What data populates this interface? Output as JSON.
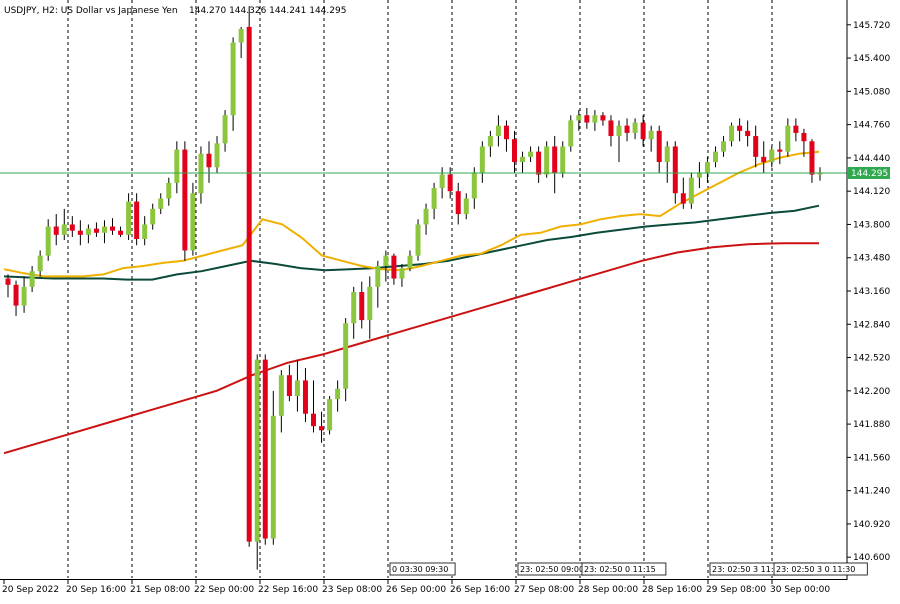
{
  "header": {
    "symbol_line": "USDJPY, H2:  US Dollar vs Japanese Yen",
    "ohlc": "144.270 144.326 144.241 144.295"
  },
  "current_price": "144.295",
  "colors": {
    "bull": "#8cc63f",
    "bear": "#e3001b",
    "ma_fast": "#f0b000",
    "ma_mid": "#0b4a3a",
    "ma_slow": "#cc1111",
    "price_line": "#2fa84f",
    "grid": "#000000"
  },
  "chart_data": {
    "type": "candlestick",
    "title": "",
    "ylim": [
      140.4,
      145.92
    ],
    "y_ticks": [
      "145.720",
      "145.400",
      "145.080",
      "144.760",
      "144.440",
      "144.120",
      "143.800",
      "143.480",
      "143.160",
      "142.840",
      "142.520",
      "142.200",
      "141.880",
      "141.560",
      "141.240",
      "140.920",
      "140.600"
    ],
    "x_labels": [
      "20 Sep 2022",
      "20 Sep 16:00",
      "21 Sep 08:00",
      "22 Sep 00:00",
      "22 Sep 16:00",
      "23 Sep 08:00",
      "26 Sep 00:00",
      "26 Sep 16:00",
      "27 Sep 08:00",
      "28 Sep 00:00",
      "28 Sep 16:00",
      "29 Sep 08:00",
      "30 Sep 00:00"
    ],
    "session_labels": [
      {
        "text": "0 03:30 09:30",
        "near": "26 Sep 00:00"
      },
      {
        "text": "23: 02:50 09:00",
        "near": "27 Sep 08:00"
      },
      {
        "text": "23: 02:50 0 11:15",
        "near": "28 Sep 00:00"
      },
      {
        "text": "23: 02:50 3 11: 14:30",
        "near": "29 Sep 08:00"
      },
      {
        "text": "23: 02:50 3 0 11:30",
        "near": "30 Sep 00:00"
      }
    ],
    "candles": [
      [
        143.28,
        143.32,
        143.1,
        143.22
      ],
      [
        143.22,
        143.26,
        142.92,
        143.02
      ],
      [
        143.02,
        143.3,
        142.95,
        143.2
      ],
      [
        143.2,
        143.4,
        143.15,
        143.35
      ],
      [
        143.35,
        143.55,
        143.3,
        143.5
      ],
      [
        143.5,
        143.85,
        143.45,
        143.78
      ],
      [
        143.78,
        143.9,
        143.6,
        143.7
      ],
      [
        143.7,
        143.95,
        143.65,
        143.8
      ],
      [
        143.8,
        143.88,
        143.68,
        143.74
      ],
      [
        143.74,
        143.84,
        143.6,
        143.7
      ],
      [
        143.7,
        143.8,
        143.62,
        143.76
      ],
      [
        143.76,
        143.82,
        143.68,
        143.72
      ],
      [
        143.72,
        143.84,
        143.62,
        143.78
      ],
      [
        143.78,
        143.86,
        143.7,
        143.74
      ],
      [
        143.74,
        143.78,
        143.68,
        143.7
      ],
      [
        143.7,
        144.1,
        143.65,
        144.02
      ],
      [
        144.02,
        144.1,
        143.6,
        143.66
      ],
      [
        143.66,
        143.88,
        143.6,
        143.8
      ],
      [
        143.8,
        144.0,
        143.75,
        143.95
      ],
      [
        143.95,
        144.1,
        143.9,
        144.05
      ],
      [
        144.05,
        144.25,
        143.98,
        144.2
      ],
      [
        144.2,
        144.6,
        144.1,
        144.52
      ],
      [
        144.52,
        144.6,
        143.45,
        143.55
      ],
      [
        143.55,
        144.2,
        143.5,
        144.1
      ],
      [
        144.1,
        144.55,
        144.0,
        144.48
      ],
      [
        144.48,
        144.6,
        144.2,
        144.35
      ],
      [
        144.35,
        144.65,
        144.3,
        144.58
      ],
      [
        144.58,
        144.9,
        144.5,
        144.85
      ],
      [
        144.85,
        145.6,
        144.7,
        145.55
      ],
      [
        145.55,
        145.7,
        145.4,
        145.68
      ],
      [
        145.7,
        145.9,
        140.7,
        140.75
      ],
      [
        140.75,
        142.55,
        140.48,
        142.5
      ],
      [
        142.5,
        142.55,
        140.72,
        140.78
      ],
      [
        140.78,
        142.2,
        140.72,
        141.96
      ],
      [
        141.96,
        142.4,
        141.8,
        142.35
      ],
      [
        142.35,
        142.45,
        142.1,
        142.15
      ],
      [
        142.15,
        142.5,
        142.0,
        142.3
      ],
      [
        142.3,
        142.42,
        141.9,
        141.98
      ],
      [
        141.98,
        142.3,
        141.8,
        141.86
      ],
      [
        141.86,
        142.0,
        141.7,
        141.82
      ],
      [
        141.82,
        142.15,
        141.78,
        142.12
      ],
      [
        142.12,
        142.3,
        142.0,
        142.22
      ],
      [
        142.22,
        142.9,
        142.1,
        142.85
      ],
      [
        142.85,
        143.2,
        142.7,
        143.15
      ],
      [
        143.15,
        143.25,
        142.8,
        142.88
      ],
      [
        142.88,
        143.3,
        142.7,
        143.2
      ],
      [
        143.2,
        143.45,
        143.0,
        143.4
      ],
      [
        143.4,
        143.55,
        143.25,
        143.5
      ],
      [
        143.5,
        143.52,
        143.22,
        143.28
      ],
      [
        143.28,
        143.42,
        143.2,
        143.38
      ],
      [
        143.38,
        143.55,
        143.35,
        143.5
      ],
      [
        143.5,
        143.85,
        143.45,
        143.8
      ],
      [
        143.8,
        144.0,
        143.7,
        143.95
      ],
      [
        143.95,
        144.2,
        143.85,
        144.15
      ],
      [
        144.15,
        144.35,
        144.05,
        144.28
      ],
      [
        144.28,
        144.35,
        144.05,
        144.12
      ],
      [
        144.12,
        144.2,
        143.8,
        143.9
      ],
      [
        143.9,
        144.1,
        143.85,
        144.05
      ],
      [
        144.05,
        144.35,
        143.95,
        144.3
      ],
      [
        144.3,
        144.6,
        144.2,
        144.55
      ],
      [
        144.55,
        144.7,
        144.45,
        144.65
      ],
      [
        144.65,
        144.85,
        144.55,
        144.75
      ],
      [
        144.75,
        144.8,
        144.5,
        144.62
      ],
      [
        144.62,
        144.7,
        144.3,
        144.4
      ],
      [
        144.4,
        144.5,
        144.3,
        144.45
      ],
      [
        144.45,
        144.55,
        144.4,
        144.5
      ],
      [
        144.5,
        144.55,
        144.2,
        144.28
      ],
      [
        144.28,
        144.6,
        144.25,
        144.55
      ],
      [
        144.55,
        144.65,
        144.1,
        144.3
      ],
      [
        144.3,
        144.6,
        144.25,
        144.55
      ],
      [
        144.55,
        144.85,
        144.5,
        144.8
      ],
      [
        144.8,
        144.9,
        144.7,
        144.85
      ],
      [
        144.85,
        144.92,
        144.72,
        144.78
      ],
      [
        144.78,
        144.9,
        144.7,
        144.85
      ],
      [
        144.85,
        144.88,
        144.75,
        144.8
      ],
      [
        144.8,
        144.85,
        144.55,
        144.65
      ],
      [
        144.65,
        144.8,
        144.4,
        144.75
      ],
      [
        144.75,
        144.82,
        144.6,
        144.68
      ],
      [
        144.68,
        144.82,
        144.62,
        144.78
      ],
      [
        144.78,
        144.85,
        144.55,
        144.62
      ],
      [
        144.62,
        144.75,
        144.5,
        144.7
      ],
      [
        144.7,
        144.75,
        144.3,
        144.4
      ],
      [
        144.4,
        144.6,
        144.2,
        144.55
      ],
      [
        144.55,
        144.6,
        144.0,
        144.1
      ],
      [
        144.1,
        144.25,
        143.95,
        144.0
      ],
      [
        144.0,
        144.3,
        143.95,
        144.25
      ],
      [
        144.25,
        144.4,
        144.15,
        144.3
      ],
      [
        144.3,
        144.45,
        144.2,
        144.4
      ],
      [
        144.4,
        144.55,
        144.35,
        144.5
      ],
      [
        144.5,
        144.65,
        144.45,
        144.6
      ],
      [
        144.6,
        144.78,
        144.55,
        144.75
      ],
      [
        144.75,
        144.82,
        144.6,
        144.7
      ],
      [
        144.7,
        144.8,
        144.55,
        144.65
      ],
      [
        144.65,
        144.75,
        144.35,
        144.45
      ],
      [
        144.45,
        144.6,
        144.3,
        144.4
      ],
      [
        144.4,
        144.55,
        144.35,
        144.52
      ],
      [
        144.52,
        144.6,
        144.38,
        144.5
      ],
      [
        144.5,
        144.82,
        144.45,
        144.75
      ],
      [
        144.75,
        144.82,
        144.6,
        144.68
      ],
      [
        144.68,
        144.72,
        144.45,
        144.6
      ],
      [
        144.6,
        144.62,
        144.2,
        144.28
      ],
      [
        144.28,
        144.35,
        144.22,
        144.3
      ]
    ],
    "series": [
      {
        "values": [
          143.37,
          143.33,
          143.3,
          143.3,
          143.3,
          143.32,
          143.38,
          143.4,
          143.43,
          143.45,
          143.5,
          143.55,
          143.6,
          143.85,
          143.8,
          143.67,
          143.5,
          143.45,
          143.4,
          143.37,
          143.36,
          143.4,
          143.45,
          143.5,
          143.52,
          143.6,
          143.7,
          143.72,
          143.78,
          143.8,
          143.85,
          143.88,
          143.9,
          143.88,
          144.0,
          144.1,
          144.2,
          144.3,
          144.38,
          144.44,
          144.48,
          144.5
        ]
      },
      {
        "values": [
          143.3,
          143.29,
          143.28,
          143.28,
          143.28,
          143.27,
          143.27,
          143.32,
          143.35,
          143.4,
          143.45,
          143.42,
          143.38,
          143.36,
          143.37,
          143.38,
          143.4,
          143.42,
          143.45,
          143.5,
          143.55,
          143.6,
          143.65,
          143.68,
          143.72,
          143.75,
          143.78,
          143.8,
          143.82,
          143.85,
          143.88,
          143.91,
          143.93,
          143.98
        ]
      },
      {
        "values": [
          141.6,
          141.7,
          141.8,
          141.9,
          142.0,
          142.1,
          142.2,
          142.35,
          142.47,
          142.55,
          142.65,
          142.75,
          142.85,
          142.95,
          143.05,
          143.15,
          143.25,
          143.35,
          143.45,
          143.53,
          143.58,
          143.61,
          143.62,
          143.62
        ]
      }
    ]
  }
}
